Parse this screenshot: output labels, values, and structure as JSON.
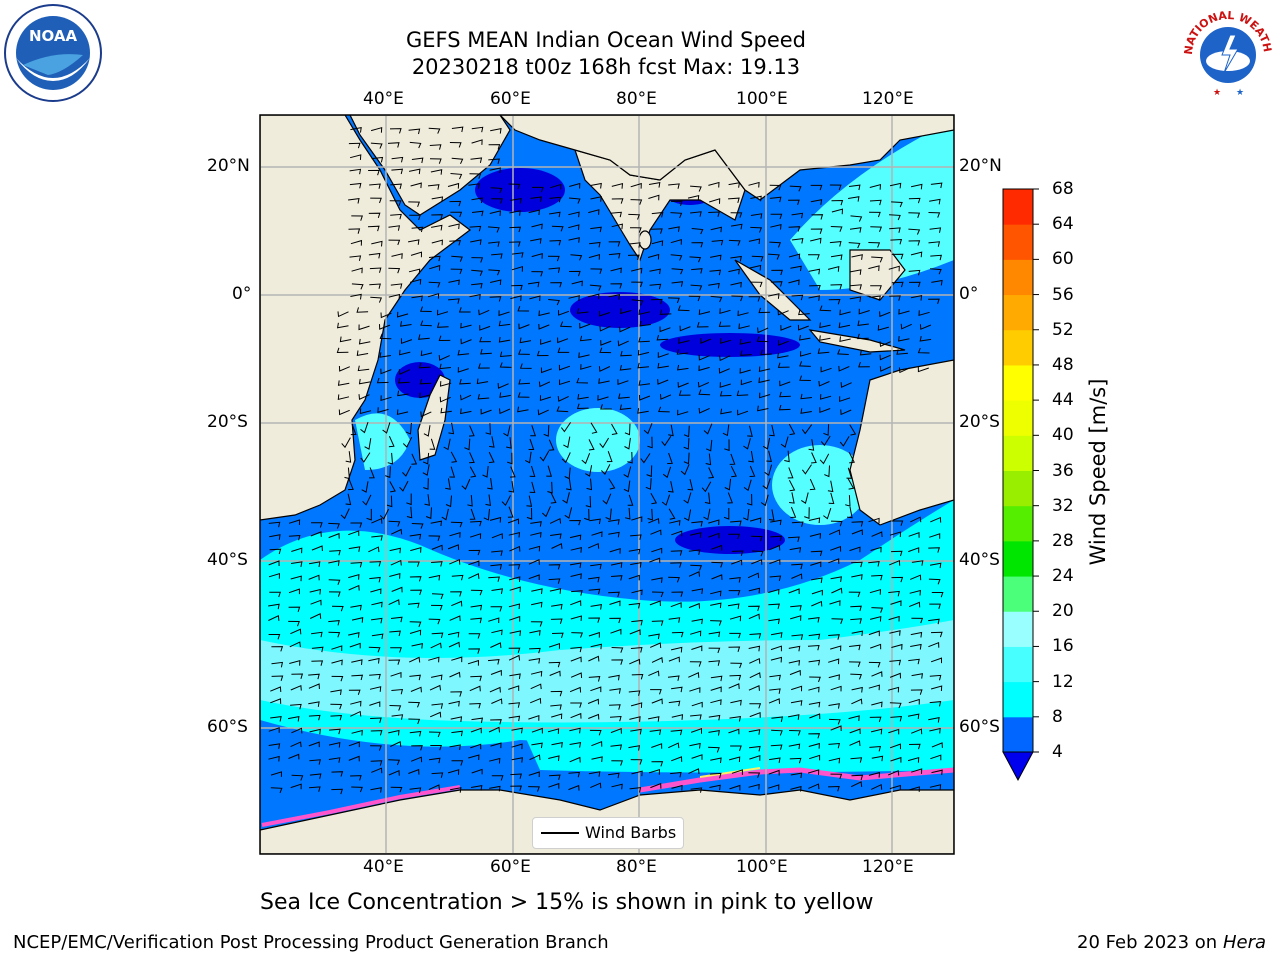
{
  "title": {
    "line1": "GEFS MEAN Indian Ocean Wind Speed",
    "line2": "20230218 t00z 168h fcst   Max: 19.13"
  },
  "map": {
    "lon_ticks": [
      "40°E",
      "60°E",
      "80°E",
      "100°E",
      "120°E"
    ],
    "lat_ticks": [
      "20°N",
      "0°",
      "20°S",
      "40°S",
      "60°S"
    ],
    "land_color": "#efecdc",
    "grid_color": "#b4b4b4"
  },
  "legend": {
    "label": "Wind Barbs"
  },
  "colorbar": {
    "label": "Wind Speed [m/s]",
    "ticks": [
      "4",
      "8",
      "12",
      "16",
      "20",
      "24",
      "28",
      "32",
      "36",
      "40",
      "44",
      "48",
      "52",
      "56",
      "60",
      "64",
      "68"
    ],
    "colors": [
      "#0066ff",
      "#00ffff",
      "#47ffff",
      "#99ffff",
      "#4cff7a",
      "#00e600",
      "#55ee00",
      "#99ee00",
      "#ccff00",
      "#eeff00",
      "#ffff00",
      "#ffcc00",
      "#ffaa00",
      "#ff8800",
      "#ff5500",
      "#ff2a00"
    ],
    "under_color": "#0000ee"
  },
  "caption": "Sea Ice Concentration > 15% is shown in pink to yellow",
  "footer": {
    "left": "NCEP/EMC/Verification Post Processing Product Generation Branch",
    "right_date": "20 Feb 2023 on",
    "right_host": "Hera"
  },
  "logos": {
    "noaa_text": "NOAA",
    "nws_text": "NATIONAL WEATHER SERVICE"
  }
}
